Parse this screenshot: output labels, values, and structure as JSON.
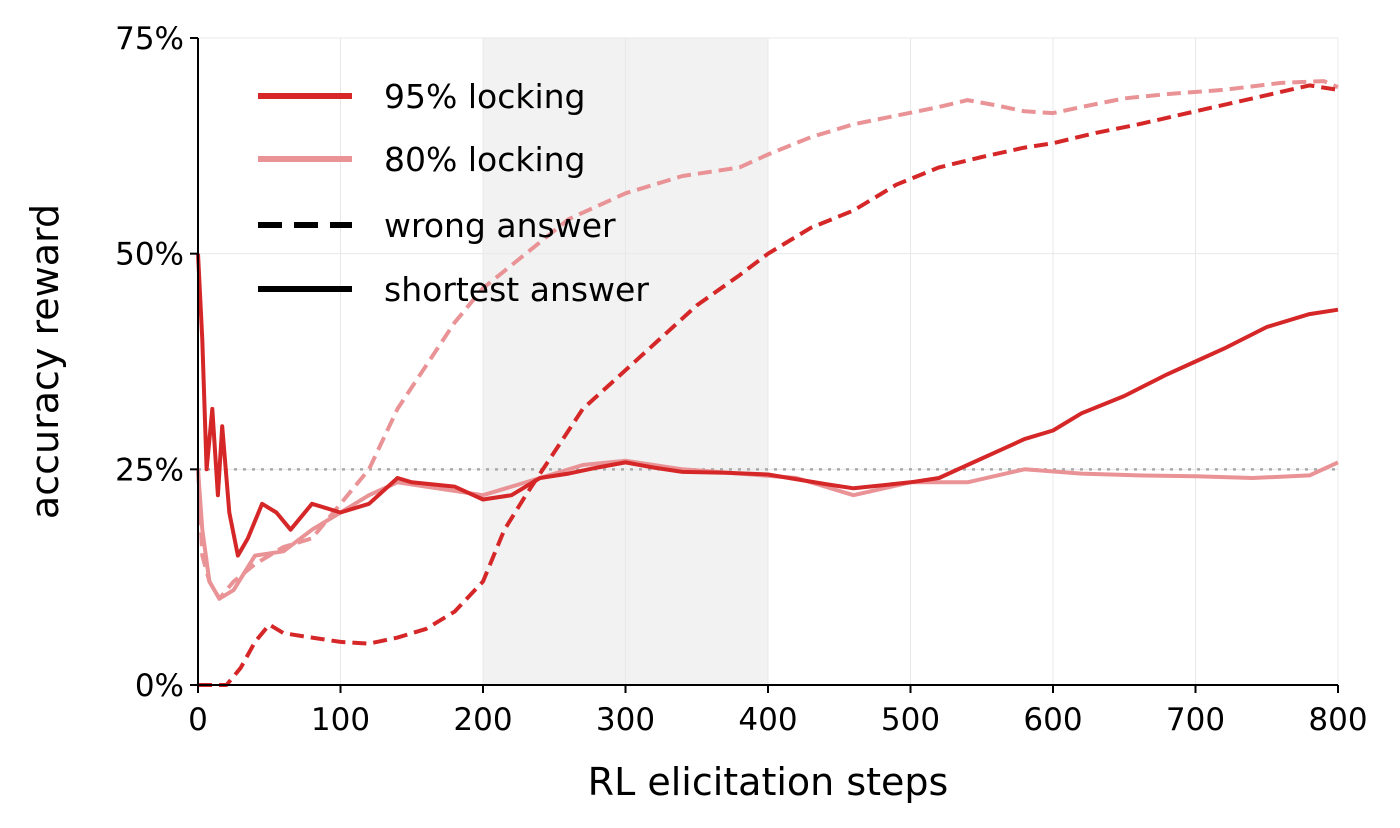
{
  "chart_data": {
    "type": "line",
    "xlabel": "RL elicitation steps",
    "ylabel": "accuracy reward",
    "xlim": [
      0,
      800
    ],
    "ylim": [
      0,
      75
    ],
    "x_ticks": [
      "0",
      "100",
      "200",
      "300",
      "400",
      "500",
      "600",
      "700",
      "800"
    ],
    "y_ticks": [
      "0%",
      "25%",
      "50%",
      "75%"
    ],
    "grid": true,
    "legend_position": "top-left",
    "shaded_region": {
      "x_start": 200,
      "x_end": 400,
      "color": "#f2f2f2"
    },
    "reference_line": {
      "y": 25,
      "style": "dotted",
      "color": "#aaaaaa"
    },
    "legend": [
      {
        "label": "95% locking",
        "color": "#d62728",
        "style": "solid"
      },
      {
        "label": "80% locking",
        "color": "#e99396",
        "style": "solid"
      },
      {
        "label": "wrong answer",
        "color": "#000000",
        "style": "dashed"
      },
      {
        "label": "shortest answer",
        "color": "#000000",
        "style": "solid"
      }
    ],
    "series": [
      {
        "locking": "80%",
        "answer": "wrong",
        "color": "#e99396",
        "dash": "dashed",
        "points": [
          [
            0,
            25
          ],
          [
            3,
            15
          ],
          [
            8,
            12
          ],
          [
            15,
            10
          ],
          [
            25,
            12
          ],
          [
            40,
            14
          ],
          [
            60,
            16
          ],
          [
            80,
            17
          ],
          [
            100,
            21
          ],
          [
            120,
            25
          ],
          [
            140,
            32
          ],
          [
            160,
            37
          ],
          [
            180,
            42
          ],
          [
            200,
            46
          ],
          [
            230,
            50
          ],
          [
            260,
            54
          ],
          [
            300,
            57
          ],
          [
            340,
            59
          ],
          [
            380,
            60
          ],
          [
            400,
            61.5
          ],
          [
            430,
            63.5
          ],
          [
            460,
            65
          ],
          [
            490,
            66
          ],
          [
            520,
            67
          ],
          [
            540,
            67.8
          ],
          [
            560,
            67.2
          ],
          [
            580,
            66.5
          ],
          [
            600,
            66.3
          ],
          [
            620,
            67
          ],
          [
            650,
            68
          ],
          [
            680,
            68.5
          ],
          [
            720,
            69
          ],
          [
            760,
            69.8
          ],
          [
            790,
            70
          ],
          [
            800,
            69.3
          ]
        ]
      },
      {
        "locking": "80%",
        "answer": "shortest",
        "color": "#e99396",
        "dash": "solid",
        "points": [
          [
            0,
            25
          ],
          [
            3,
            18
          ],
          [
            8,
            12
          ],
          [
            15,
            10
          ],
          [
            25,
            11
          ],
          [
            40,
            15
          ],
          [
            60,
            15.5
          ],
          [
            80,
            18
          ],
          [
            100,
            20
          ],
          [
            120,
            22
          ],
          [
            140,
            23.5
          ],
          [
            160,
            23
          ],
          [
            200,
            22
          ],
          [
            240,
            24
          ],
          [
            270,
            25.5
          ],
          [
            300,
            26
          ],
          [
            340,
            25
          ],
          [
            380,
            24.5
          ],
          [
            420,
            24
          ],
          [
            460,
            22
          ],
          [
            500,
            23.5
          ],
          [
            540,
            23.5
          ],
          [
            580,
            25
          ],
          [
            620,
            24.5
          ],
          [
            660,
            24.3
          ],
          [
            700,
            24.2
          ],
          [
            740,
            24
          ],
          [
            780,
            24.3
          ],
          [
            800,
            25.8
          ]
        ]
      },
      {
        "locking": "95%",
        "answer": "wrong",
        "color": "#d62728",
        "dash": "dashed",
        "points": [
          [
            0,
            0
          ],
          [
            20,
            0
          ],
          [
            30,
            2
          ],
          [
            40,
            5
          ],
          [
            50,
            7
          ],
          [
            60,
            6
          ],
          [
            80,
            5.5
          ],
          [
            100,
            5
          ],
          [
            120,
            4.8
          ],
          [
            140,
            5.5
          ],
          [
            160,
            6.5
          ],
          [
            180,
            8.5
          ],
          [
            200,
            12
          ],
          [
            215,
            18
          ],
          [
            230,
            22
          ],
          [
            250,
            27
          ],
          [
            270,
            32
          ],
          [
            290,
            35
          ],
          [
            310,
            38
          ],
          [
            330,
            41
          ],
          [
            350,
            44
          ],
          [
            380,
            47.5
          ],
          [
            400,
            50
          ],
          [
            430,
            53
          ],
          [
            460,
            55
          ],
          [
            490,
            58
          ],
          [
            520,
            60
          ],
          [
            550,
            61.2
          ],
          [
            580,
            62.3
          ],
          [
            600,
            62.8
          ],
          [
            630,
            64
          ],
          [
            660,
            65
          ],
          [
            700,
            66.5
          ],
          [
            740,
            68
          ],
          [
            780,
            69.5
          ],
          [
            800,
            69
          ]
        ]
      },
      {
        "locking": "95%",
        "answer": "shortest",
        "color": "#d62728",
        "dash": "solid",
        "points": [
          [
            0,
            50
          ],
          [
            3,
            40
          ],
          [
            6,
            25
          ],
          [
            10,
            32
          ],
          [
            14,
            22
          ],
          [
            17,
            30
          ],
          [
            22,
            20
          ],
          [
            28,
            15
          ],
          [
            35,
            17
          ],
          [
            45,
            21
          ],
          [
            55,
            20
          ],
          [
            65,
            18
          ],
          [
            80,
            21
          ],
          [
            100,
            20
          ],
          [
            120,
            21
          ],
          [
            140,
            24
          ],
          [
            150,
            23.5
          ],
          [
            180,
            23
          ],
          [
            200,
            21.5
          ],
          [
            220,
            22
          ],
          [
            240,
            24
          ],
          [
            260,
            24.5
          ],
          [
            280,
            25.2
          ],
          [
            300,
            25.8
          ],
          [
            320,
            25.2
          ],
          [
            340,
            24.7
          ],
          [
            370,
            24.6
          ],
          [
            400,
            24.4
          ],
          [
            440,
            23.3
          ],
          [
            460,
            22.8
          ],
          [
            500,
            23.5
          ],
          [
            520,
            24
          ],
          [
            540,
            25.5
          ],
          [
            560,
            27
          ],
          [
            580,
            28.5
          ],
          [
            600,
            29.5
          ],
          [
            620,
            31.5
          ],
          [
            650,
            33.5
          ],
          [
            680,
            36
          ],
          [
            700,
            37.5
          ],
          [
            720,
            39
          ],
          [
            750,
            41.5
          ],
          [
            780,
            43
          ],
          [
            800,
            43.5
          ]
        ]
      }
    ]
  }
}
